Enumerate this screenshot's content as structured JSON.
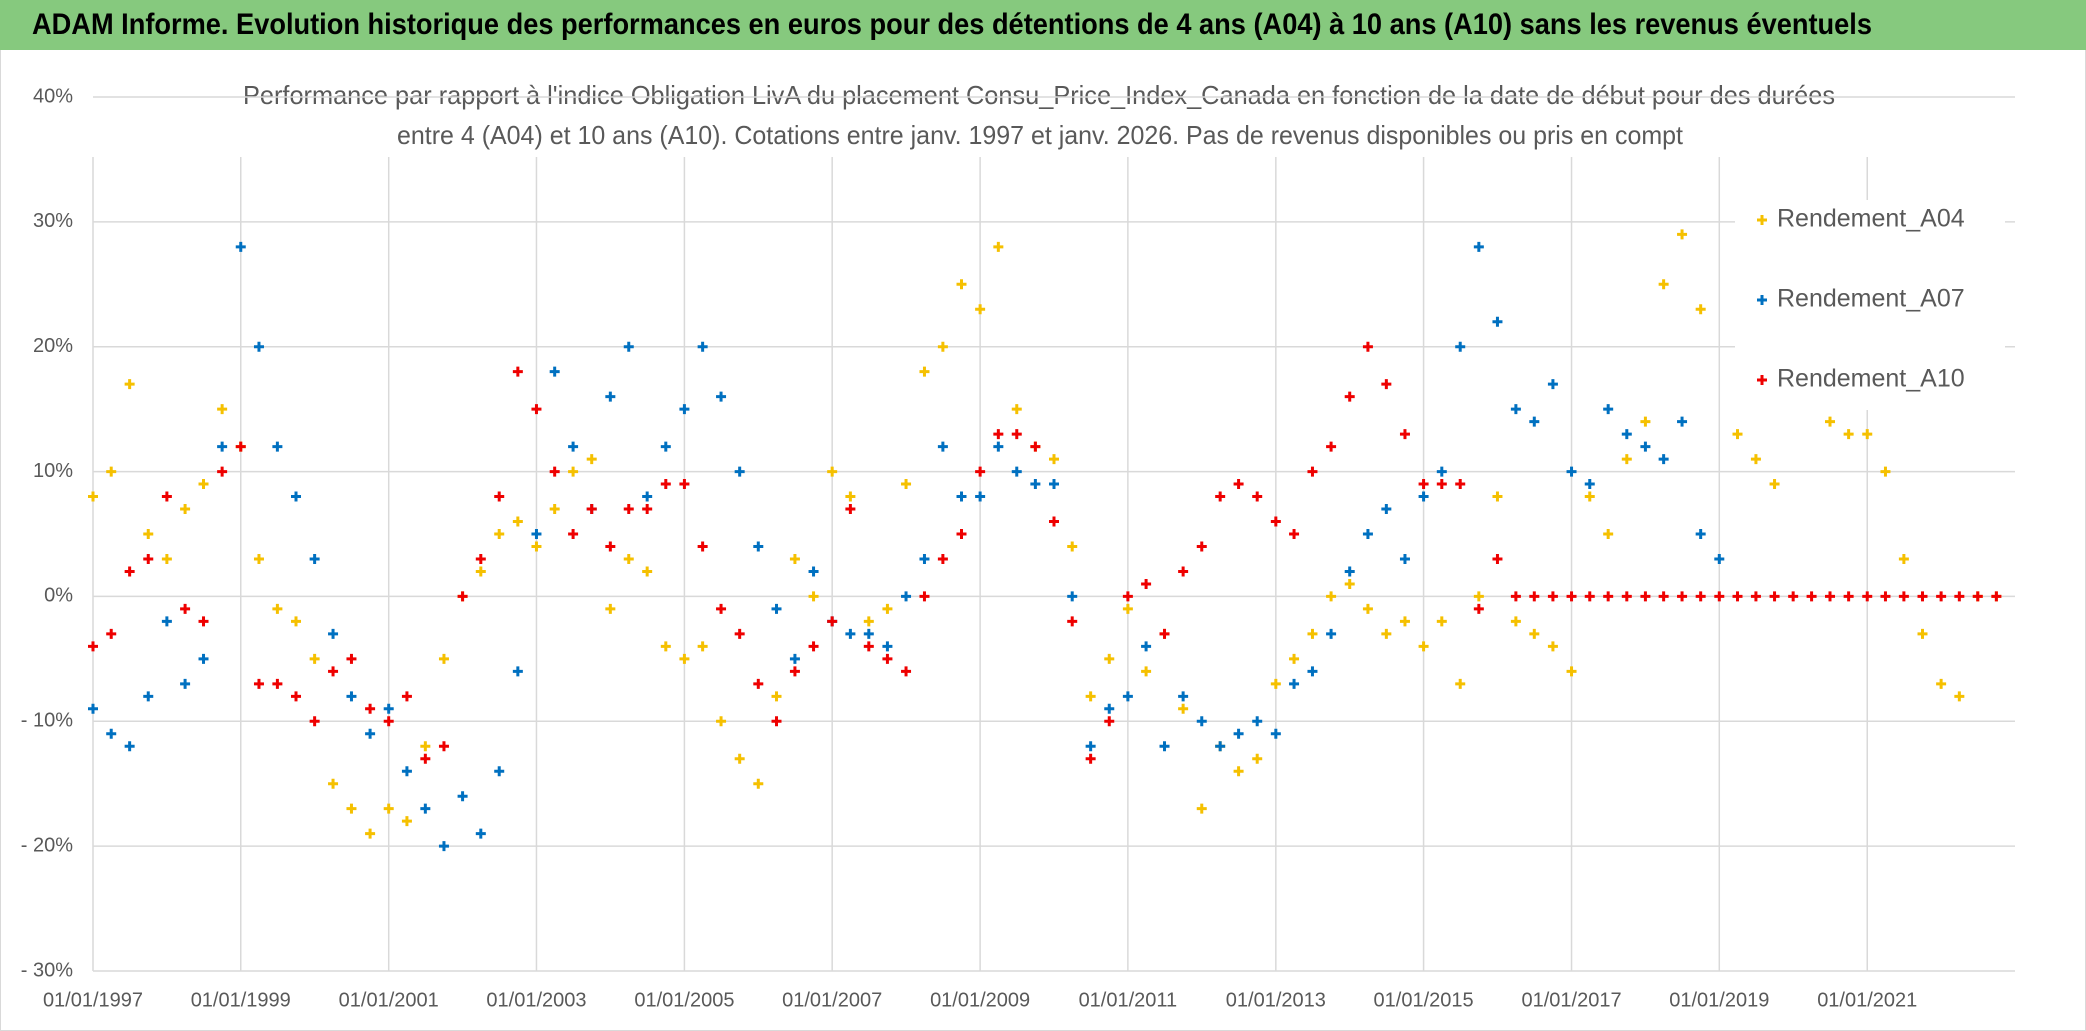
{
  "chart_data": {
    "type": "scatter",
    "title": "ADAM Informe. Evolution historique des performances en euros pour des détentions de 4 ans (A04) à 10 ans (A10) sans les revenus éventuels",
    "subtitle": [
      "Performance par rapport à l'indice Obligation LivA  du placement Consu_Price_Index_Canada en fonction de la date de début pour des durées",
      "entre 4 (A04) et 10 ans (A10). Cotations entre janv. 1997 et janv. 2026. Pas de revenus disponibles ou pris en compt"
    ],
    "x": [
      "1997-01-01",
      "1997-04-01",
      "1997-07-01",
      "1997-10-01",
      "1998-01-01",
      "1998-04-01",
      "1998-07-01",
      "1998-10-01",
      "1999-01-01",
      "1999-04-01",
      "1999-07-01",
      "1999-10-01",
      "2000-01-01",
      "2000-04-01",
      "2000-07-01",
      "2000-10-01",
      "2001-01-01",
      "2001-04-01",
      "2001-07-01",
      "2001-10-01",
      "2002-01-01",
      "2002-04-01",
      "2002-07-01",
      "2002-10-01",
      "2003-01-01",
      "2003-04-01",
      "2003-07-01",
      "2003-10-01",
      "2004-01-01",
      "2004-04-01",
      "2004-07-01",
      "2004-10-01",
      "2005-01-01",
      "2005-04-01",
      "2005-07-01",
      "2005-10-01",
      "2006-01-01",
      "2006-04-01",
      "2006-07-01",
      "2006-10-01",
      "2007-01-01",
      "2007-04-01",
      "2007-07-01",
      "2007-10-01",
      "2008-01-01",
      "2008-04-01",
      "2008-07-01",
      "2008-10-01",
      "2009-01-01",
      "2009-04-01",
      "2009-07-01",
      "2009-10-01",
      "2010-01-01",
      "2010-04-01",
      "2010-07-01",
      "2010-10-01",
      "2011-01-01",
      "2011-04-01",
      "2011-07-01",
      "2011-10-01",
      "2012-01-01",
      "2012-04-01",
      "2012-07-01",
      "2012-10-01",
      "2013-01-01",
      "2013-04-01",
      "2013-07-01",
      "2013-10-01",
      "2014-01-01",
      "2014-04-01",
      "2014-07-01",
      "2014-10-01",
      "2015-01-01",
      "2015-04-01",
      "2015-07-01",
      "2015-10-01",
      "2016-01-01",
      "2016-04-01",
      "2016-07-01",
      "2016-10-01",
      "2017-01-01",
      "2017-04-01",
      "2017-07-01",
      "2017-10-01",
      "2018-01-01",
      "2018-04-01",
      "2018-07-01",
      "2018-10-01",
      "2019-01-01",
      "2019-04-01",
      "2019-07-01",
      "2019-10-01",
      "2020-01-01",
      "2020-04-01",
      "2020-07-01",
      "2020-10-01",
      "2021-01-01",
      "2021-04-01",
      "2021-07-01",
      "2021-10-01",
      "2022-01-01",
      "2022-04-01",
      "2022-07-01",
      "2022-10-01"
    ],
    "series": [
      {
        "name": "Rendement_A04",
        "color": "#f5c000",
        "values": [
          8,
          10,
          17,
          5,
          3,
          7,
          9,
          15,
          12,
          3,
          -1,
          -2,
          -5,
          -15,
          -17,
          -19,
          -17,
          -18,
          -12,
          -5,
          0,
          2,
          5,
          6,
          4,
          7,
          10,
          11,
          -1,
          3,
          2,
          -4,
          -5,
          -4,
          -10,
          -13,
          -15,
          -8,
          3,
          0,
          10,
          8,
          -2,
          -1,
          9,
          18,
          20,
          25,
          23,
          28,
          15,
          12,
          11,
          4,
          -8,
          -5,
          -1,
          -6,
          -3,
          -9,
          -17,
          -12,
          -14,
          -13,
          -7,
          -5,
          -3,
          0,
          1,
          -1,
          -3,
          -2,
          -4,
          -2,
          -7,
          0,
          8,
          -2,
          -3,
          -4,
          -6,
          8,
          5,
          11,
          14,
          25,
          29,
          23,
          null,
          13,
          11,
          9,
          null,
          null,
          14,
          13,
          13,
          10,
          3,
          -3,
          -7,
          -8,
          0,
          0
        ]
      },
      {
        "name": "Rendement_A07",
        "color": "#0070c0",
        "values": [
          -9,
          -11,
          -12,
          -8,
          -2,
          -7,
          -5,
          12,
          28,
          20,
          12,
          8,
          3,
          -3,
          -8,
          -11,
          -9,
          -14,
          -17,
          -20,
          -16,
          -19,
          -14,
          -6,
          5,
          18,
          12,
          7,
          16,
          20,
          8,
          12,
          15,
          20,
          16,
          10,
          4,
          -1,
          -5,
          2,
          -2,
          -3,
          -3,
          -4,
          0,
          3,
          12,
          8,
          8,
          12,
          10,
          9,
          9,
          0,
          -12,
          -9,
          -8,
          -4,
          -12,
          -8,
          -10,
          -12,
          -11,
          -10,
          -11,
          -7,
          -6,
          -3,
          2,
          5,
          7,
          3,
          8,
          10,
          20,
          28,
          22,
          15,
          14,
          17,
          10,
          9,
          15,
          13,
          12,
          11,
          14,
          5,
          3,
          null,
          null,
          null,
          null,
          null,
          null,
          null,
          null,
          null,
          null,
          null,
          null,
          null,
          null,
          null
        ]
      },
      {
        "name": "Rendement_A10",
        "color": "#ee0000",
        "values": [
          -4,
          -3,
          2,
          3,
          8,
          -1,
          -2,
          10,
          12,
          -7,
          -7,
          -8,
          -10,
          -6,
          -5,
          -9,
          -10,
          -8,
          -13,
          -12,
          0,
          3,
          8,
          18,
          15,
          10,
          5,
          7,
          4,
          7,
          7,
          9,
          9,
          4,
          -1,
          -3,
          -7,
          -10,
          -6,
          -4,
          -2,
          7,
          -4,
          -5,
          -6,
          0,
          3,
          5,
          10,
          13,
          13,
          12,
          6,
          -2,
          -13,
          -10,
          0,
          1,
          -3,
          2,
          4,
          8,
          9,
          8,
          6,
          5,
          10,
          12,
          16,
          20,
          17,
          13,
          9,
          9,
          9,
          -1,
          3,
          0,
          0,
          0,
          0,
          0,
          0,
          0,
          0,
          0,
          0,
          0,
          0,
          0,
          0,
          0,
          0,
          0,
          0,
          0,
          0,
          0,
          0,
          0,
          0,
          0,
          0,
          0
        ]
      }
    ],
    "xlim": [
      "1997-01-01",
      "2023-01-01"
    ],
    "xticks": [
      {
        "value": "1997-01-01",
        "label": "01/01/1997"
      },
      {
        "value": "1999-01-01",
        "label": "01/01/1999"
      },
      {
        "value": "2001-01-01",
        "label": "01/01/2001"
      },
      {
        "value": "2003-01-01",
        "label": "01/01/2003"
      },
      {
        "value": "2005-01-01",
        "label": "01/01/2005"
      },
      {
        "value": "2007-01-01",
        "label": "01/01/2007"
      },
      {
        "value": "2009-01-01",
        "label": "01/01/2009"
      },
      {
        "value": "2011-01-01",
        "label": "01/01/2011"
      },
      {
        "value": "2013-01-01",
        "label": "01/01/2013"
      },
      {
        "value": "2015-01-01",
        "label": "01/01/2015"
      },
      {
        "value": "2017-01-01",
        "label": "01/01/2017"
      },
      {
        "value": "2019-01-01",
        "label": "01/01/2019"
      },
      {
        "value": "2021-01-01",
        "label": "01/01/2021"
      }
    ],
    "ylim": [
      -30,
      40
    ],
    "yticks": [
      {
        "value": -30,
        "label": "- 30%"
      },
      {
        "value": -20,
        "label": "- 20%"
      },
      {
        "value": -10,
        "label": "- 10%"
      },
      {
        "value": 0,
        "label": "0%"
      },
      {
        "value": 10,
        "label": "10%"
      },
      {
        "value": 20,
        "label": "20%"
      },
      {
        "value": 30,
        "label": "30%"
      },
      {
        "value": 40,
        "label": "40%"
      }
    ],
    "grid": true,
    "legend": "upper right"
  }
}
